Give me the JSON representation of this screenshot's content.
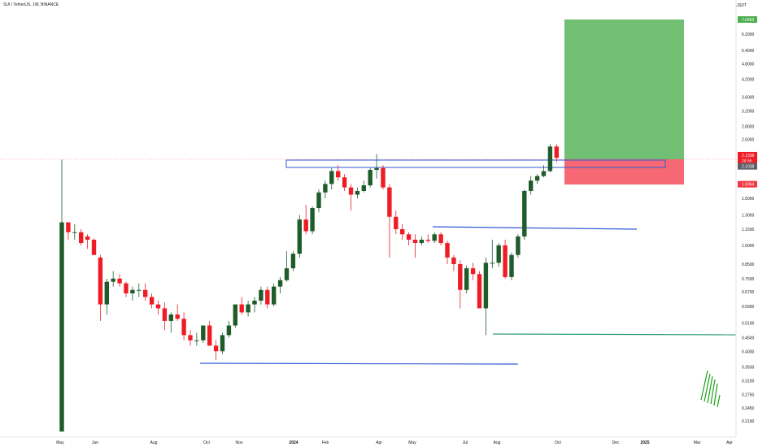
{
  "header": {
    "symbol": "SUI / TetherUS, 1W, BINANCE",
    "currency": "USDT"
  },
  "colors": {
    "up": "#1e5c2a",
    "down": "#ee1c25",
    "blue_line": "#2f5bd6",
    "green_line": "#2e9c74",
    "target": "#4caf50",
    "stop": "#f23645"
  },
  "chart_data": {
    "type": "candlestick",
    "scale": "log",
    "ylim": [
      0.2,
      7.5
    ],
    "y_ticks": [
      "7.0463",
      "6.2000",
      "5.4000",
      "4.8000",
      "4.2000",
      "3.6000",
      "3.2000",
      "2.8000",
      "2.5000",
      "2.1338",
      "2.1038",
      "1.6964",
      "1.5000",
      "1.3000",
      "1.1500",
      "1.0000",
      "0.8500",
      "0.7500",
      "0.6700",
      "0.5900",
      "0.5100",
      "0.4500",
      "0.4000",
      "0.3500",
      "0.3100",
      "0.2750",
      "0.2450",
      "0.2190"
    ],
    "x_ticks": [
      "May",
      "Jun",
      "Aug",
      "Oct",
      "Nov",
      "2024",
      "Feb",
      "Apr",
      "May",
      "Jul",
      "Aug",
      "Oct",
      "Dec",
      "2025",
      "Mar",
      "Apr"
    ],
    "candles": [
      {
        "o": 0.2,
        "h": 2.1,
        "l": 0.2,
        "c": 1.22
      },
      {
        "o": 1.22,
        "h": 1.22,
        "l": 1.05,
        "c": 1.12
      },
      {
        "o": 1.12,
        "h": 1.2,
        "l": 1.05,
        "c": 1.12
      },
      {
        "o": 1.12,
        "h": 1.15,
        "l": 1.0,
        "c": 1.02
      },
      {
        "o": 1.08,
        "h": 1.1,
        "l": 0.97,
        "c": 1.05
      },
      {
        "o": 1.05,
        "h": 1.06,
        "l": 0.92,
        "c": 0.92
      },
      {
        "o": 0.9,
        "h": 0.92,
        "l": 0.52,
        "c": 0.6
      },
      {
        "o": 0.6,
        "h": 0.75,
        "l": 0.55,
        "c": 0.73
      },
      {
        "o": 0.73,
        "h": 0.8,
        "l": 0.7,
        "c": 0.75
      },
      {
        "o": 0.75,
        "h": 0.78,
        "l": 0.7,
        "c": 0.72
      },
      {
        "o": 0.72,
        "h": 0.73,
        "l": 0.64,
        "c": 0.66
      },
      {
        "o": 0.66,
        "h": 0.7,
        "l": 0.62,
        "c": 0.68
      },
      {
        "o": 0.68,
        "h": 0.72,
        "l": 0.64,
        "c": 0.68
      },
      {
        "o": 0.68,
        "h": 0.72,
        "l": 0.62,
        "c": 0.64
      },
      {
        "o": 0.64,
        "h": 0.66,
        "l": 0.58,
        "c": 0.6
      },
      {
        "o": 0.6,
        "h": 0.62,
        "l": 0.55,
        "c": 0.58
      },
      {
        "o": 0.58,
        "h": 0.61,
        "l": 0.48,
        "c": 0.52
      },
      {
        "o": 0.52,
        "h": 0.56,
        "l": 0.47,
        "c": 0.55
      },
      {
        "o": 0.55,
        "h": 0.6,
        "l": 0.52,
        "c": 0.53
      },
      {
        "o": 0.53,
        "h": 0.56,
        "l": 0.44,
        "c": 0.46
      },
      {
        "o": 0.46,
        "h": 0.48,
        "l": 0.42,
        "c": 0.44
      },
      {
        "o": 0.44,
        "h": 0.47,
        "l": 0.42,
        "c": 0.44
      },
      {
        "o": 0.44,
        "h": 0.5,
        "l": 0.43,
        "c": 0.5
      },
      {
        "o": 0.5,
        "h": 0.52,
        "l": 0.42,
        "c": 0.42
      },
      {
        "o": 0.42,
        "h": 0.44,
        "l": 0.37,
        "c": 0.4
      },
      {
        "o": 0.4,
        "h": 0.47,
        "l": 0.39,
        "c": 0.46
      },
      {
        "o": 0.46,
        "h": 0.52,
        "l": 0.45,
        "c": 0.5
      },
      {
        "o": 0.5,
        "h": 0.6,
        "l": 0.49,
        "c": 0.6
      },
      {
        "o": 0.6,
        "h": 0.64,
        "l": 0.55,
        "c": 0.56
      },
      {
        "o": 0.56,
        "h": 0.62,
        "l": 0.54,
        "c": 0.6
      },
      {
        "o": 0.6,
        "h": 0.64,
        "l": 0.56,
        "c": 0.62
      },
      {
        "o": 0.62,
        "h": 0.7,
        "l": 0.6,
        "c": 0.68
      },
      {
        "o": 0.68,
        "h": 0.7,
        "l": 0.58,
        "c": 0.6
      },
      {
        "o": 0.6,
        "h": 0.72,
        "l": 0.59,
        "c": 0.7
      },
      {
        "o": 0.7,
        "h": 0.76,
        "l": 0.66,
        "c": 0.74
      },
      {
        "o": 0.74,
        "h": 0.95,
        "l": 0.73,
        "c": 0.82
      },
      {
        "o": 0.82,
        "h": 0.95,
        "l": 0.8,
        "c": 0.93
      },
      {
        "o": 0.93,
        "h": 1.3,
        "l": 0.9,
        "c": 1.25
      },
      {
        "o": 1.25,
        "h": 1.42,
        "l": 1.1,
        "c": 1.13
      },
      {
        "o": 1.13,
        "h": 1.4,
        "l": 1.1,
        "c": 1.38
      },
      {
        "o": 1.38,
        "h": 1.62,
        "l": 1.33,
        "c": 1.58
      },
      {
        "o": 1.58,
        "h": 1.75,
        "l": 1.5,
        "c": 1.7
      },
      {
        "o": 1.7,
        "h": 1.95,
        "l": 1.62,
        "c": 1.9
      },
      {
        "o": 1.9,
        "h": 2.0,
        "l": 1.75,
        "c": 1.8
      },
      {
        "o": 1.8,
        "h": 1.85,
        "l": 1.6,
        "c": 1.65
      },
      {
        "o": 1.65,
        "h": 1.7,
        "l": 1.35,
        "c": 1.55
      },
      {
        "o": 1.55,
        "h": 1.65,
        "l": 1.5,
        "c": 1.6
      },
      {
        "o": 1.6,
        "h": 1.75,
        "l": 1.58,
        "c": 1.68
      },
      {
        "o": 1.68,
        "h": 1.95,
        "l": 1.65,
        "c": 1.92
      },
      {
        "o": 1.92,
        "h": 2.2,
        "l": 1.78,
        "c": 1.95
      },
      {
        "o": 1.95,
        "h": 2.0,
        "l": 1.62,
        "c": 1.65
      },
      {
        "o": 1.65,
        "h": 1.7,
        "l": 0.9,
        "c": 1.28
      },
      {
        "o": 1.28,
        "h": 1.35,
        "l": 1.1,
        "c": 1.15
      },
      {
        "o": 1.15,
        "h": 1.2,
        "l": 1.05,
        "c": 1.1
      },
      {
        "o": 1.1,
        "h": 1.12,
        "l": 1.0,
        "c": 1.05
      },
      {
        "o": 1.05,
        "h": 1.1,
        "l": 0.9,
        "c": 1.02
      },
      {
        "o": 1.02,
        "h": 1.08,
        "l": 1.0,
        "c": 1.05
      },
      {
        "o": 1.05,
        "h": 1.1,
        "l": 1.02,
        "c": 1.04
      },
      {
        "o": 1.04,
        "h": 1.12,
        "l": 1.02,
        "c": 1.1
      },
      {
        "o": 1.1,
        "h": 1.12,
        "l": 1.0,
        "c": 1.02
      },
      {
        "o": 1.02,
        "h": 1.04,
        "l": 0.85,
        "c": 0.9
      },
      {
        "o": 0.9,
        "h": 0.92,
        "l": 0.8,
        "c": 0.85
      },
      {
        "o": 0.85,
        "h": 0.88,
        "l": 0.58,
        "c": 0.68
      },
      {
        "o": 0.68,
        "h": 0.84,
        "l": 0.66,
        "c": 0.82
      },
      {
        "o": 0.82,
        "h": 0.86,
        "l": 0.74,
        "c": 0.78
      },
      {
        "o": 0.78,
        "h": 0.8,
        "l": 0.58,
        "c": 0.58
      },
      {
        "o": 0.58,
        "h": 0.9,
        "l": 0.46,
        "c": 0.86
      },
      {
        "o": 0.86,
        "h": 1.05,
        "l": 0.82,
        "c": 0.86
      },
      {
        "o": 0.86,
        "h": 1.02,
        "l": 0.83,
        "c": 1.0
      },
      {
        "o": 1.0,
        "h": 1.05,
        "l": 0.75,
        "c": 0.76
      },
      {
        "o": 0.76,
        "h": 0.94,
        "l": 0.74,
        "c": 0.92
      },
      {
        "o": 0.92,
        "h": 1.1,
        "l": 0.9,
        "c": 1.08
      },
      {
        "o": 1.08,
        "h": 1.62,
        "l": 1.05,
        "c": 1.6
      },
      {
        "o": 1.6,
        "h": 1.82,
        "l": 1.55,
        "c": 1.75
      },
      {
        "o": 1.75,
        "h": 1.85,
        "l": 1.7,
        "c": 1.82
      },
      {
        "o": 1.82,
        "h": 2.0,
        "l": 1.8,
        "c": 1.9
      },
      {
        "o": 1.9,
        "h": 2.4,
        "l": 1.88,
        "c": 2.35
      },
      {
        "o": 2.35,
        "h": 2.4,
        "l": 2.05,
        "c": 2.13
      }
    ],
    "price_tags": [
      {
        "value": "7.0463",
        "color": "#4caf50",
        "y": 7.0463
      },
      {
        "value": "2.1338",
        "color": "#ee1c25",
        "y": 2.18
      },
      {
        "value": "2d 5h",
        "color": "#ee1c25",
        "y": 2.08
      },
      {
        "value": "2.1038",
        "color": "#5d606b",
        "y": 1.98
      },
      {
        "value": "1.6964",
        "color": "#f23645",
        "y": 1.6964
      }
    ]
  }
}
